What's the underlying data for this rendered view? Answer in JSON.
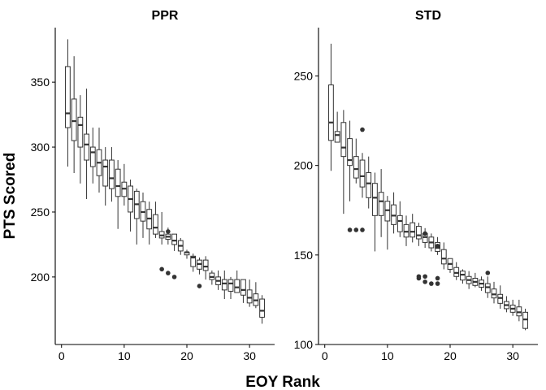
{
  "chart_data": [
    {
      "type": "boxplot",
      "title": "PPR",
      "xlim": [
        -1,
        34
      ],
      "ylim": [
        148,
        392
      ],
      "xticks": [
        0,
        10,
        20,
        30
      ],
      "yticks": [
        200,
        250,
        300,
        350
      ],
      "boxes": [
        {
          "x": 1,
          "lower": 285,
          "q1": 315,
          "median": 326,
          "q3": 362,
          "upper": 383
        },
        {
          "x": 2,
          "lower": 280,
          "q1": 305,
          "median": 320,
          "q3": 337,
          "upper": 370
        },
        {
          "x": 3,
          "lower": 272,
          "q1": 300,
          "median": 317,
          "q3": 323,
          "upper": 340
        },
        {
          "x": 4,
          "lower": 260,
          "q1": 290,
          "median": 302,
          "q3": 310,
          "upper": 345
        },
        {
          "x": 5,
          "lower": 272,
          "q1": 285,
          "median": 296,
          "q3": 300,
          "upper": 315
        },
        {
          "x": 6,
          "lower": 265,
          "q1": 278,
          "median": 288,
          "q3": 298,
          "upper": 315
        },
        {
          "x": 7,
          "lower": 255,
          "q1": 270,
          "median": 285,
          "q3": 290,
          "upper": 300
        },
        {
          "x": 8,
          "lower": 258,
          "q1": 268,
          "median": 276,
          "q3": 290,
          "upper": 300
        },
        {
          "x": 9,
          "lower": 237,
          "q1": 262,
          "median": 270,
          "q3": 283,
          "upper": 290
        },
        {
          "x": 10,
          "lower": 255,
          "q1": 262,
          "median": 268,
          "q3": 273,
          "upper": 287
        },
        {
          "x": 11,
          "lower": 235,
          "q1": 250,
          "median": 260,
          "q3": 270,
          "upper": 275
        },
        {
          "x": 12,
          "lower": 225,
          "q1": 245,
          "median": 256,
          "q3": 266,
          "upper": 268
        },
        {
          "x": 13,
          "lower": 230,
          "q1": 243,
          "median": 250,
          "q3": 258,
          "upper": 265
        },
        {
          "x": 14,
          "lower": 225,
          "q1": 237,
          "median": 245,
          "q3": 252,
          "upper": 258
        },
        {
          "x": 15,
          "lower": 230,
          "q1": 233,
          "median": 238,
          "q3": 248,
          "upper": 258
        },
        {
          "x": 16,
          "lower": 225,
          "q1": 230,
          "median": 232,
          "q3": 235,
          "upper": 250
        },
        {
          "x": 17,
          "lower": 225,
          "q1": 229,
          "median": 231,
          "q3": 233,
          "upper": 238
        },
        {
          "x": 18,
          "lower": 220,
          "q1": 225,
          "median": 228,
          "q3": 233,
          "upper": 233
        },
        {
          "x": 19,
          "lower": 217,
          "q1": 220,
          "median": 224,
          "q3": 228,
          "upper": 230
        },
        {
          "x": 20,
          "lower": 214,
          "q1": 217,
          "median": 219,
          "q3": 219,
          "upper": 221
        },
        {
          "x": 21,
          "lower": 204,
          "q1": 208,
          "median": 215,
          "q3": 216,
          "upper": 218
        },
        {
          "x": 22,
          "lower": 202,
          "q1": 206,
          "median": 210,
          "q3": 213,
          "upper": 215
        },
        {
          "x": 23,
          "lower": 198,
          "q1": 205,
          "median": 208,
          "q3": 213,
          "upper": 216
        },
        {
          "x": 24,
          "lower": 194,
          "q1": 198,
          "median": 200,
          "q3": 203,
          "upper": 205
        },
        {
          "x": 25,
          "lower": 190,
          "q1": 194,
          "median": 197,
          "q3": 200,
          "upper": 205
        },
        {
          "x": 26,
          "lower": 183,
          "q1": 190,
          "median": 195,
          "q3": 198,
          "upper": 205
        },
        {
          "x": 27,
          "lower": 183,
          "q1": 189,
          "median": 195,
          "q3": 198,
          "upper": 200
        },
        {
          "x": 28,
          "lower": 188,
          "q1": 188,
          "median": 192,
          "q3": 198,
          "upper": 205
        },
        {
          "x": 29,
          "lower": 180,
          "q1": 186,
          "median": 190,
          "q3": 198,
          "upper": 198
        },
        {
          "x": 30,
          "lower": 177,
          "q1": 180,
          "median": 184,
          "q3": 190,
          "upper": 198
        },
        {
          "x": 31,
          "lower": 176,
          "q1": 178,
          "median": 182,
          "q3": 187,
          "upper": 196
        },
        {
          "x": 32,
          "lower": 164,
          "q1": 169,
          "median": 174,
          "q3": 183,
          "upper": 186
        }
      ],
      "outliers": [
        {
          "x": 16,
          "y": 206
        },
        {
          "x": 17,
          "y": 203
        },
        {
          "x": 18,
          "y": 200
        },
        {
          "x": 17,
          "y": 235
        },
        {
          "x": 22,
          "y": 193
        }
      ]
    },
    {
      "type": "boxplot",
      "title": "STD",
      "xlim": [
        -1,
        34
      ],
      "ylim": [
        100,
        277
      ],
      "xticks": [
        0,
        10,
        20,
        30
      ],
      "yticks": [
        100,
        150,
        200,
        250
      ],
      "boxes": [
        {
          "x": 1,
          "lower": 197,
          "q1": 214,
          "median": 224,
          "q3": 245,
          "upper": 268
        },
        {
          "x": 2,
          "lower": 213,
          "q1": 213,
          "median": 217,
          "q3": 219,
          "upper": 230
        },
        {
          "x": 3,
          "lower": 173,
          "q1": 205,
          "median": 210,
          "q3": 224,
          "upper": 231
        },
        {
          "x": 4,
          "lower": 180,
          "q1": 200,
          "median": 203,
          "q3": 215,
          "upper": 225
        },
        {
          "x": 5,
          "lower": 190,
          "q1": 193,
          "median": 198,
          "q3": 205,
          "upper": 215
        },
        {
          "x": 6,
          "lower": 182,
          "q1": 188,
          "median": 194,
          "q3": 203,
          "upper": 207
        },
        {
          "x": 7,
          "lower": 176,
          "q1": 182,
          "median": 190,
          "q3": 196,
          "upper": 205
        },
        {
          "x": 8,
          "lower": 152,
          "q1": 172,
          "median": 182,
          "q3": 190,
          "upper": 196
        },
        {
          "x": 9,
          "lower": 160,
          "q1": 172,
          "median": 180,
          "q3": 185,
          "upper": 198
        },
        {
          "x": 10,
          "lower": 153,
          "q1": 169,
          "median": 175,
          "q3": 180,
          "upper": 183
        },
        {
          "x": 11,
          "lower": 162,
          "q1": 167,
          "median": 172,
          "q3": 178,
          "upper": 185
        },
        {
          "x": 12,
          "lower": 160,
          "q1": 163,
          "median": 169,
          "q3": 172,
          "upper": 180
        },
        {
          "x": 13,
          "lower": 155,
          "q1": 160,
          "median": 163,
          "q3": 167,
          "upper": 172
        },
        {
          "x": 14,
          "lower": 157,
          "q1": 160,
          "median": 163,
          "q3": 168,
          "upper": 173
        },
        {
          "x": 15,
          "lower": 155,
          "q1": 159,
          "median": 161,
          "q3": 166,
          "upper": 168
        },
        {
          "x": 16,
          "lower": 154,
          "q1": 157,
          "median": 160,
          "q3": 162,
          "upper": 165
        },
        {
          "x": 17,
          "lower": 152,
          "q1": 154,
          "median": 157,
          "q3": 160,
          "upper": 162
        },
        {
          "x": 18,
          "lower": 150,
          "q1": 152,
          "median": 154,
          "q3": 157,
          "upper": 160
        },
        {
          "x": 19,
          "lower": 142,
          "q1": 145,
          "median": 148,
          "q3": 153,
          "upper": 157
        },
        {
          "x": 20,
          "lower": 140,
          "q1": 142,
          "median": 145,
          "q3": 148,
          "upper": 148
        },
        {
          "x": 21,
          "lower": 136,
          "q1": 138,
          "median": 140,
          "q3": 143,
          "upper": 146
        },
        {
          "x": 22,
          "lower": 134,
          "q1": 136,
          "median": 139,
          "q3": 141,
          "upper": 142
        },
        {
          "x": 23,
          "lower": 131,
          "q1": 134,
          "median": 136,
          "q3": 138,
          "upper": 141
        },
        {
          "x": 24,
          "lower": 132,
          "q1": 133,
          "median": 135,
          "q3": 137,
          "upper": 140
        },
        {
          "x": 25,
          "lower": 130,
          "q1": 132,
          "median": 134,
          "q3": 136,
          "upper": 138
        },
        {
          "x": 26,
          "lower": 126,
          "q1": 129,
          "median": 132,
          "q3": 134,
          "upper": 138
        },
        {
          "x": 27,
          "lower": 123,
          "q1": 126,
          "median": 128,
          "q3": 131,
          "upper": 135
        },
        {
          "x": 28,
          "lower": 120,
          "q1": 123,
          "median": 126,
          "q3": 128,
          "upper": 133
        },
        {
          "x": 29,
          "lower": 118,
          "q1": 120,
          "median": 122,
          "q3": 124,
          "upper": 127
        },
        {
          "x": 30,
          "lower": 116,
          "q1": 118,
          "median": 120,
          "q3": 122,
          "upper": 125
        },
        {
          "x": 31,
          "lower": 113,
          "q1": 116,
          "median": 118,
          "q3": 121,
          "upper": 125
        },
        {
          "x": 32,
          "lower": 108,
          "q1": 109,
          "median": 114,
          "q3": 118,
          "upper": 120
        }
      ],
      "outliers": [
        {
          "x": 4,
          "y": 164
        },
        {
          "x": 5,
          "y": 164
        },
        {
          "x": 6,
          "y": 164
        },
        {
          "x": 6,
          "y": 220
        },
        {
          "x": 15,
          "y": 138
        },
        {
          "x": 15,
          "y": 137
        },
        {
          "x": 16,
          "y": 138
        },
        {
          "x": 16,
          "y": 135
        },
        {
          "x": 17,
          "y": 134
        },
        {
          "x": 16,
          "y": 162
        },
        {
          "x": 18,
          "y": 155
        },
        {
          "x": 18,
          "y": 137
        },
        {
          "x": 18,
          "y": 134
        },
        {
          "x": 26,
          "y": 140
        }
      ]
    }
  ],
  "axes": {
    "x_title": "EOY Rank",
    "y_title": "PTS Scored"
  }
}
